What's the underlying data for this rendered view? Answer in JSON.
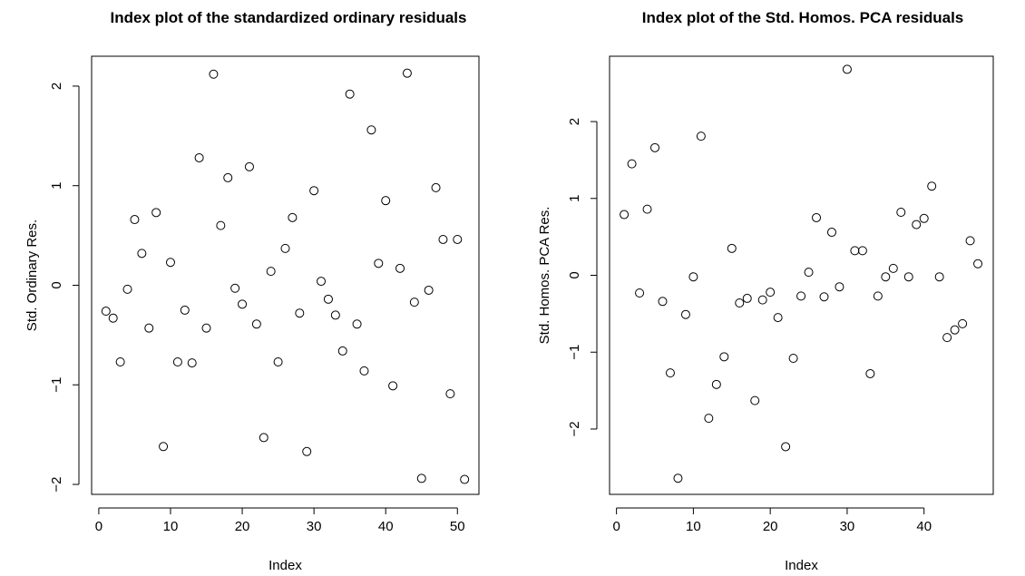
{
  "chart_data": [
    {
      "type": "scatter",
      "title": "Index plot of the standardized ordinary residuals",
      "xlabel": "Index",
      "ylabel": "Std. Ordinary Res.",
      "xlim": [
        -1,
        53
      ],
      "ylim": [
        -2.1,
        2.3
      ],
      "xticks": [
        0,
        10,
        20,
        30,
        40,
        50
      ],
      "yticks": [
        -2,
        -1,
        0,
        1,
        2
      ],
      "grid": false,
      "x": [
        1,
        2,
        3,
        4,
        5,
        6,
        7,
        8,
        9,
        10,
        11,
        12,
        13,
        14,
        15,
        16,
        17,
        18,
        19,
        20,
        21,
        22,
        23,
        24,
        25,
        26,
        27,
        28,
        29,
        30,
        31,
        32,
        33,
        34,
        35,
        36,
        37,
        38,
        39,
        40,
        41,
        42,
        43,
        44,
        45,
        46,
        47,
        48,
        49,
        50,
        51
      ],
      "y": [
        -0.26,
        -0.33,
        -0.77,
        -0.04,
        0.66,
        0.32,
        -0.43,
        0.73,
        -1.62,
        0.23,
        -0.77,
        -0.25,
        -0.78,
        1.28,
        -0.43,
        2.12,
        0.6,
        1.08,
        -0.03,
        -0.19,
        1.19,
        -0.39,
        -1.53,
        0.14,
        -0.77,
        0.37,
        0.68,
        -0.28,
        -1.67,
        0.95,
        0.04,
        -0.14,
        -0.3,
        -0.66,
        1.92,
        -0.39,
        -0.86,
        1.56,
        0.22,
        0.85,
        -1.01,
        0.17,
        2.13,
        -0.17,
        -1.94,
        -0.05,
        0.98,
        0.46,
        -1.09,
        0.46,
        -1.95
      ]
    },
    {
      "type": "scatter",
      "title": "Index plot of the Std. Homos. PCA residuals",
      "xlabel": "Index",
      "ylabel": "Std. Homos. PCA Res.",
      "xlim": [
        -0.9,
        49
      ],
      "ylim": [
        -2.85,
        2.85
      ],
      "xticks": [
        0,
        10,
        20,
        30,
        40
      ],
      "yticks": [
        -2,
        -1,
        0,
        1,
        2
      ],
      "grid": false,
      "x": [
        1,
        2,
        3,
        4,
        5,
        6,
        7,
        8,
        9,
        10,
        11,
        12,
        13,
        14,
        15,
        16,
        17,
        18,
        19,
        20,
        21,
        22,
        23,
        24,
        25,
        26,
        27,
        28,
        29,
        30,
        31,
        32,
        33,
        34,
        35,
        36,
        37,
        38,
        39,
        40,
        41,
        42,
        43,
        44,
        45,
        46,
        47
      ],
      "y": [
        0.79,
        1.45,
        -0.23,
        0.86,
        1.66,
        -0.34,
        -1.27,
        -2.64,
        -0.51,
        -0.02,
        1.81,
        -1.86,
        -1.42,
        -1.06,
        0.35,
        -0.36,
        -0.3,
        -1.63,
        -0.32,
        -0.22,
        -0.55,
        -2.23,
        -1.08,
        -0.27,
        0.04,
        0.75,
        -0.28,
        0.56,
        -0.15,
        2.68,
        0.32,
        0.32,
        -1.28,
        -0.27,
        -0.02,
        0.09,
        0.82,
        -0.02,
        0.66,
        0.74,
        1.16,
        -0.02,
        -0.81,
        -0.71,
        -0.63,
        0.45,
        0.15
      ]
    }
  ]
}
